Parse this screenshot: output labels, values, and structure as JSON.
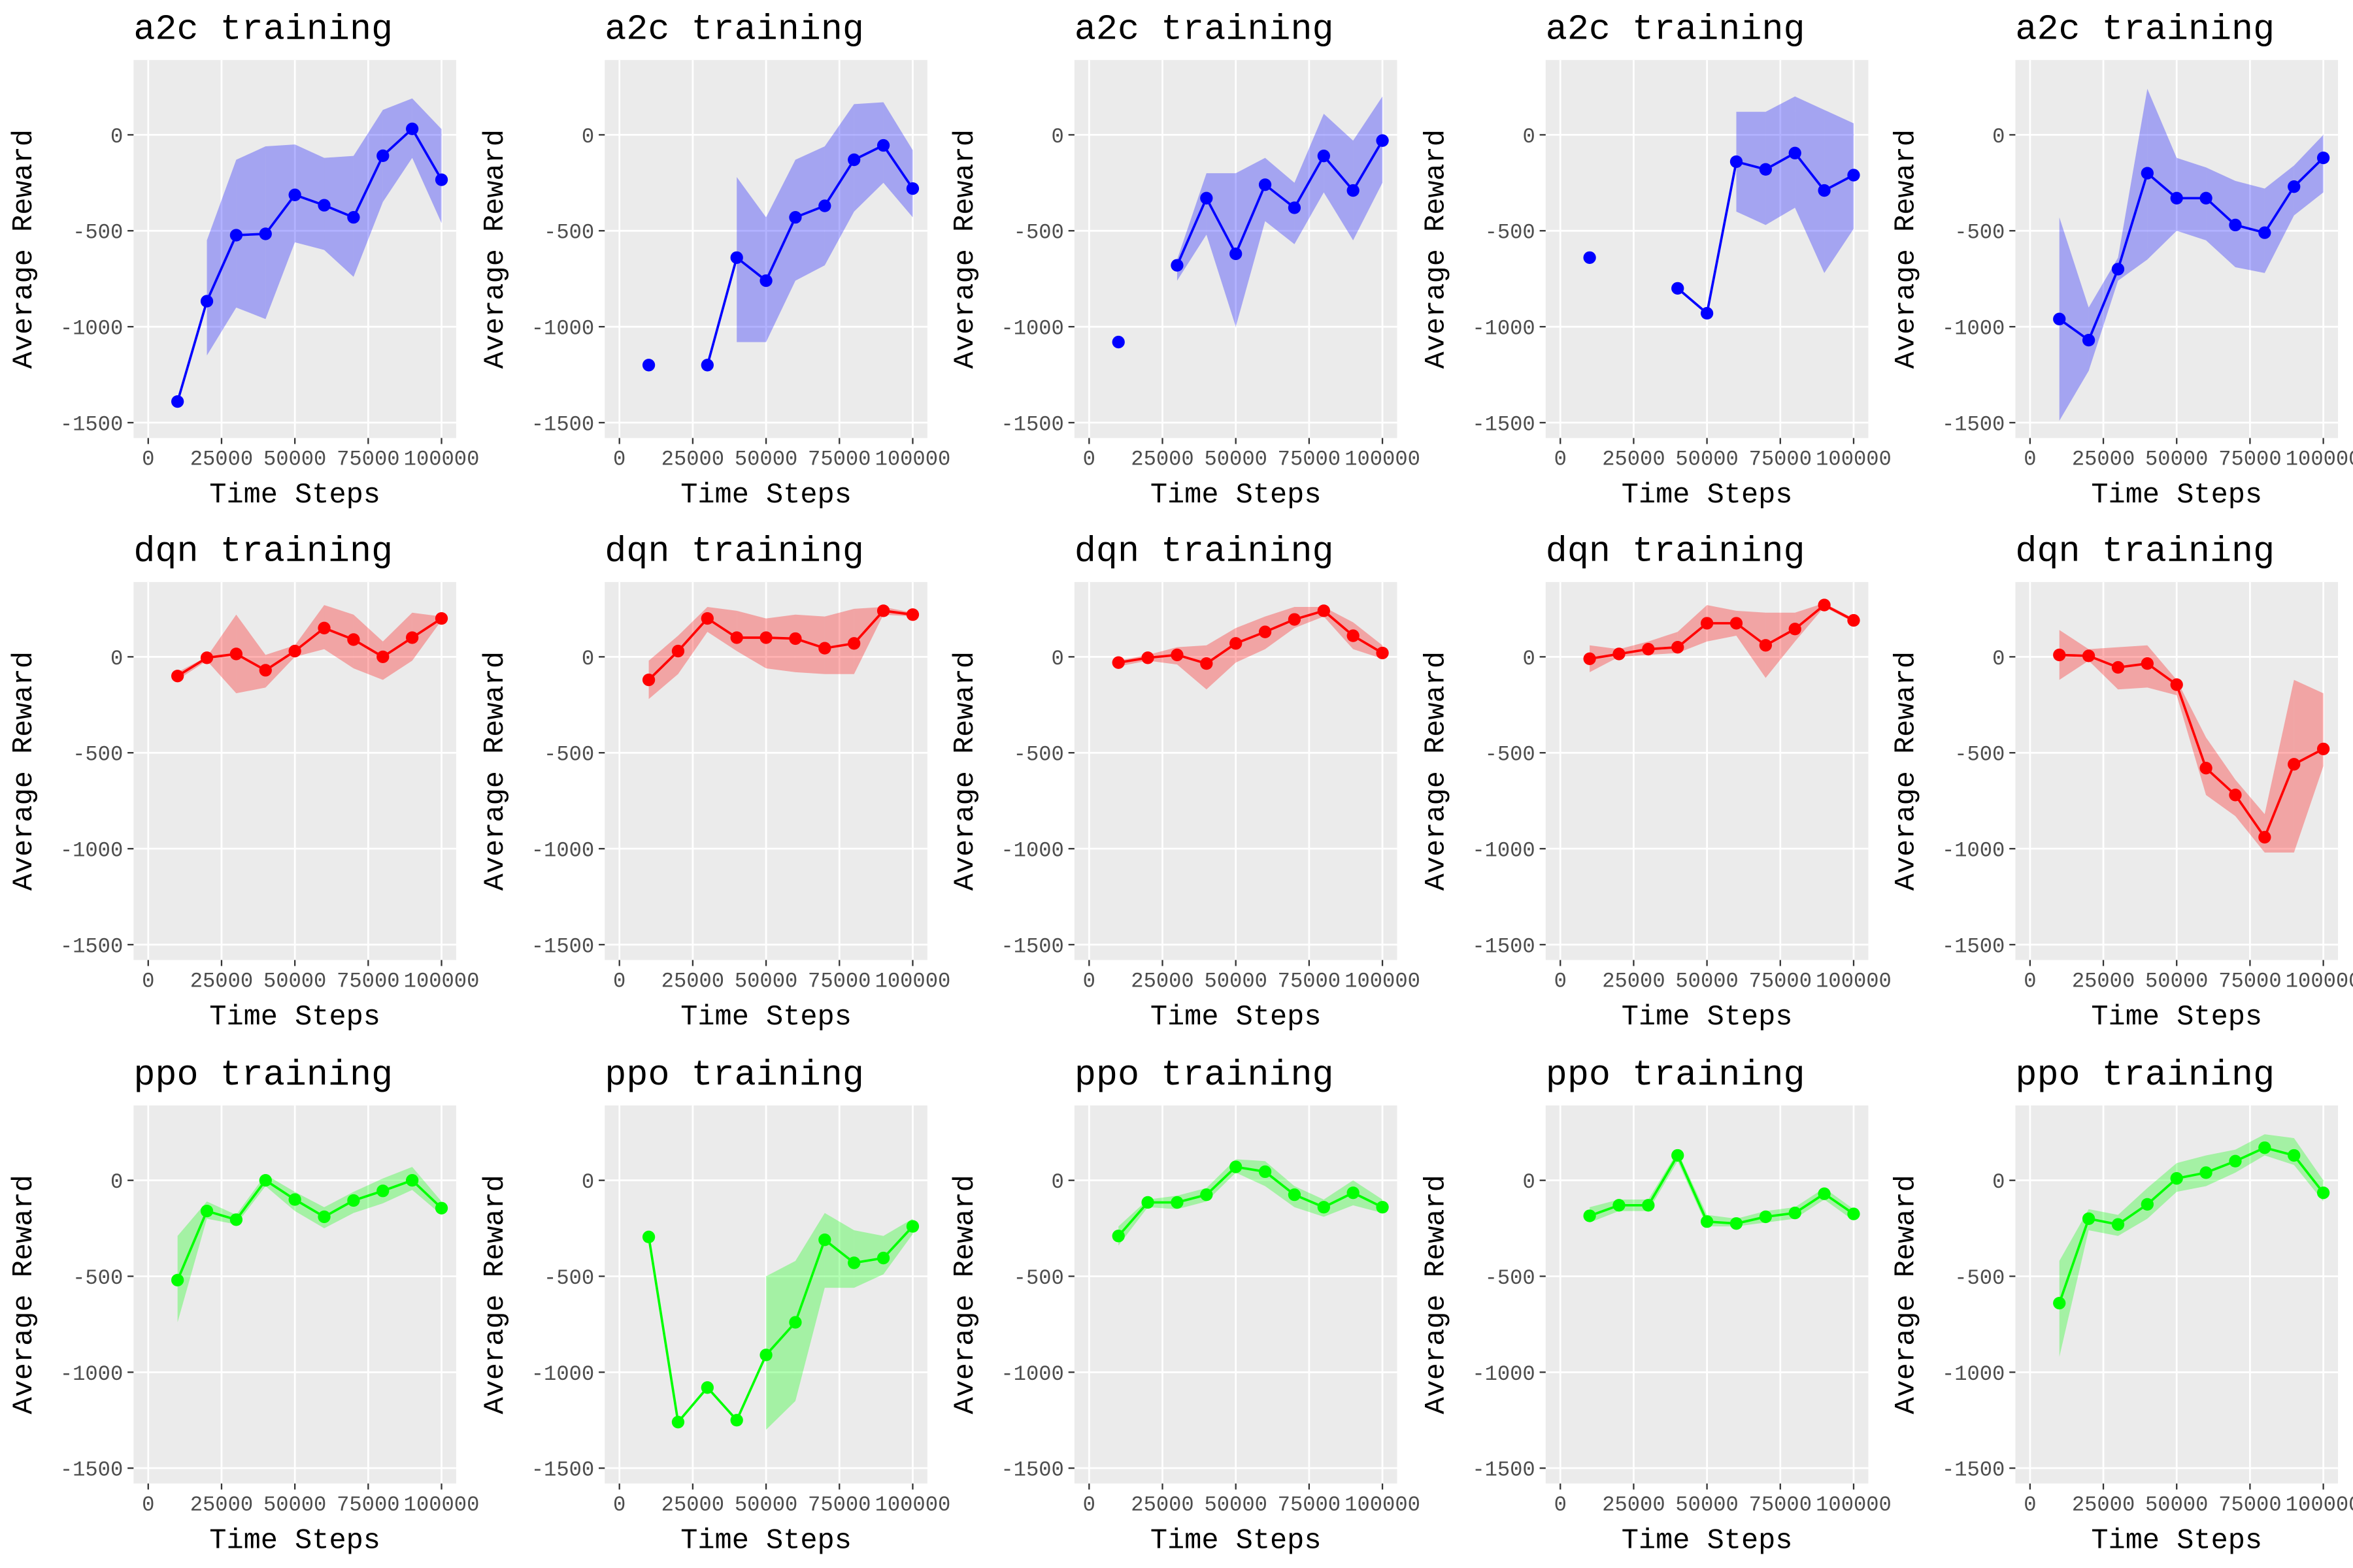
{
  "chart_data": [
    {
      "type": "line",
      "title": "a2c training",
      "xlabel": "Time Steps",
      "ylabel": "Average Reward",
      "color": "#0000ff",
      "grid": true,
      "xlim": [
        -5000,
        105000
      ],
      "ylim": [
        -1580,
        390
      ],
      "xticks": [
        0,
        25000,
        50000,
        75000,
        100000
      ],
      "yticks": [
        -1500,
        -1000,
        -500,
        0
      ],
      "x": [
        10000,
        20000,
        30000,
        40000,
        50000,
        60000,
        70000,
        80000,
        90000,
        100000
      ],
      "values": [
        -1390,
        -867,
        -523,
        -516,
        -313,
        -367,
        -430,
        -109,
        31,
        -234
      ],
      "upper": [
        null,
        -550,
        -130,
        -60,
        -50,
        -120,
        -110,
        130,
        190,
        30
      ],
      "lower": [
        null,
        -1150,
        -900,
        -960,
        -560,
        -600,
        -740,
        -350,
        -120,
        -460
      ]
    },
    {
      "type": "line",
      "title": "a2c training",
      "xlabel": "Time Steps",
      "ylabel": "Average Reward",
      "color": "#0000ff",
      "grid": true,
      "xlim": [
        -5000,
        105000
      ],
      "ylim": [
        -1580,
        390
      ],
      "xticks": [
        0,
        25000,
        50000,
        75000,
        100000
      ],
      "yticks": [
        -1500,
        -1000,
        -500,
        0
      ],
      "x": [
        10000,
        20000,
        30000,
        40000,
        50000,
        60000,
        70000,
        80000,
        90000,
        100000
      ],
      "values": [
        -1200,
        null,
        -1200,
        -640,
        -760,
        -430,
        -370,
        -130,
        -55,
        -280
      ],
      "upper": [
        null,
        null,
        null,
        -220,
        -430,
        -130,
        -60,
        160,
        170,
        -80
      ],
      "lower": [
        null,
        null,
        null,
        -1080,
        -1080,
        -760,
        -680,
        -400,
        -250,
        -430
      ]
    },
    {
      "type": "line",
      "title": "a2c training",
      "xlabel": "Time Steps",
      "ylabel": "Average Reward",
      "color": "#0000ff",
      "grid": true,
      "xlim": [
        -5000,
        105000
      ],
      "ylim": [
        -1580,
        390
      ],
      "xticks": [
        0,
        25000,
        50000,
        75000,
        100000
      ],
      "yticks": [
        -1500,
        -1000,
        -500,
        0
      ],
      "x": [
        10000,
        20000,
        30000,
        40000,
        50000,
        60000,
        70000,
        80000,
        90000,
        100000
      ],
      "values": [
        -1080,
        null,
        -680,
        -330,
        -620,
        -260,
        -380,
        -110,
        -290,
        -30
      ],
      "upper": [
        null,
        null,
        -650,
        -200,
        -200,
        -120,
        -250,
        110,
        -30,
        200
      ],
      "lower": [
        null,
        null,
        -760,
        -520,
        -1000,
        -450,
        -570,
        -300,
        -550,
        -250
      ]
    },
    {
      "type": "line",
      "title": "a2c training",
      "xlabel": "Time Steps",
      "ylabel": "Average Reward",
      "color": "#0000ff",
      "grid": true,
      "xlim": [
        -5000,
        105000
      ],
      "ylim": [
        -1580,
        390
      ],
      "xticks": [
        0,
        25000,
        50000,
        75000,
        100000
      ],
      "yticks": [
        -1500,
        -1000,
        -500,
        0
      ],
      "x": [
        10000,
        20000,
        30000,
        40000,
        50000,
        60000,
        70000,
        80000,
        90000,
        100000
      ],
      "values": [
        -640,
        null,
        null,
        -800,
        -930,
        -140,
        -180,
        -95,
        -290,
        -210
      ],
      "upper": [
        null,
        null,
        null,
        null,
        null,
        120,
        120,
        200,
        130,
        60
      ],
      "lower": [
        null,
        null,
        null,
        null,
        null,
        -400,
        -470,
        -380,
        -720,
        -490
      ]
    },
    {
      "type": "line",
      "title": "a2c training",
      "xlabel": "Time Steps",
      "ylabel": "Average Reward",
      "color": "#0000ff",
      "grid": true,
      "xlim": [
        -5000,
        105000
      ],
      "ylim": [
        -1580,
        390
      ],
      "xticks": [
        0,
        25000,
        50000,
        75000,
        100000
      ],
      "yticks": [
        -1500,
        -1000,
        -500,
        0
      ],
      "x": [
        10000,
        20000,
        30000,
        40000,
        50000,
        60000,
        70000,
        80000,
        90000,
        100000
      ],
      "values": [
        -960,
        -1070,
        -700,
        -200,
        -330,
        -330,
        -470,
        -510,
        -270,
        -120
      ],
      "upper": [
        -430,
        -900,
        -640,
        240,
        -120,
        -170,
        -240,
        -280,
        -160,
        0
      ],
      "lower": [
        -1490,
        -1230,
        -760,
        -650,
        -500,
        -550,
        -690,
        -720,
        -420,
        -300
      ]
    },
    {
      "type": "line",
      "title": "dqn training",
      "xlabel": "Time Steps",
      "ylabel": "Average Reward",
      "color": "#ff0000",
      "grid": true,
      "xlim": [
        -5000,
        105000
      ],
      "ylim": [
        -1580,
        390
      ],
      "xticks": [
        0,
        25000,
        50000,
        75000,
        100000
      ],
      "yticks": [
        -1500,
        -1000,
        -500,
        0
      ],
      "x": [
        10000,
        20000,
        30000,
        40000,
        50000,
        60000,
        70000,
        80000,
        90000,
        100000
      ],
      "values": [
        -100,
        -5,
        15,
        -70,
        30,
        150,
        90,
        0,
        100,
        200
      ],
      "upper": [
        -80,
        0,
        220,
        10,
        60,
        270,
        220,
        80,
        230,
        210
      ],
      "lower": [
        -120,
        -20,
        -190,
        -160,
        0,
        40,
        -60,
        -120,
        -20,
        190
      ]
    },
    {
      "type": "line",
      "title": "dqn training",
      "xlabel": "Time Steps",
      "ylabel": "Average Reward",
      "color": "#ff0000",
      "grid": true,
      "xlim": [
        -5000,
        105000
      ],
      "ylim": [
        -1580,
        390
      ],
      "xticks": [
        0,
        25000,
        50000,
        75000,
        100000
      ],
      "yticks": [
        -1500,
        -1000,
        -500,
        0
      ],
      "x": [
        10000,
        20000,
        30000,
        40000,
        50000,
        60000,
        70000,
        80000,
        90000,
        100000
      ],
      "values": [
        -120,
        30,
        200,
        100,
        100,
        95,
        45,
        70,
        240,
        220
      ],
      "upper": [
        -20,
        110,
        260,
        240,
        200,
        220,
        210,
        250,
        260,
        230
      ],
      "lower": [
        -220,
        -90,
        130,
        30,
        -60,
        -80,
        -90,
        -90,
        220,
        210
      ]
    },
    {
      "type": "line",
      "title": "dqn training",
      "xlabel": "Time Steps",
      "ylabel": "Average Reward",
      "color": "#ff0000",
      "grid": true,
      "xlim": [
        -5000,
        105000
      ],
      "ylim": [
        -1580,
        390
      ],
      "xticks": [
        0,
        25000,
        50000,
        75000,
        100000
      ],
      "yticks": [
        -1500,
        -1000,
        -500,
        0
      ],
      "x": [
        10000,
        20000,
        30000,
        40000,
        50000,
        60000,
        70000,
        80000,
        90000,
        100000
      ],
      "values": [
        -30,
        -5,
        10,
        -35,
        70,
        130,
        195,
        240,
        110,
        20
      ],
      "upper": [
        -20,
        10,
        50,
        60,
        150,
        210,
        260,
        260,
        180,
        60
      ],
      "lower": [
        -50,
        -20,
        -40,
        -170,
        -30,
        40,
        150,
        210,
        40,
        -10
      ]
    },
    {
      "type": "line",
      "title": "dqn training",
      "xlabel": "Time Steps",
      "ylabel": "Average Reward",
      "color": "#ff0000",
      "grid": true,
      "xlim": [
        -5000,
        105000
      ],
      "ylim": [
        -1580,
        390
      ],
      "xticks": [
        0,
        25000,
        50000,
        75000,
        100000
      ],
      "yticks": [
        -1500,
        -1000,
        -500,
        0
      ],
      "x": [
        10000,
        20000,
        30000,
        40000,
        50000,
        60000,
        70000,
        80000,
        90000,
        100000
      ],
      "values": [
        -10,
        15,
        40,
        50,
        175,
        175,
        60,
        145,
        270,
        190
      ],
      "upper": [
        60,
        40,
        80,
        130,
        270,
        240,
        230,
        230,
        280,
        200
      ],
      "lower": [
        -80,
        0,
        10,
        20,
        80,
        110,
        -110,
        80,
        260,
        180
      ]
    },
    {
      "type": "line",
      "title": "dqn training",
      "xlabel": "Time Steps",
      "ylabel": "Average Reward",
      "color": "#ff0000",
      "grid": true,
      "xlim": [
        -5000,
        105000
      ],
      "ylim": [
        -1580,
        390
      ],
      "xticks": [
        0,
        25000,
        50000,
        75000,
        100000
      ],
      "yticks": [
        -1500,
        -1000,
        -500,
        0
      ],
      "x": [
        10000,
        20000,
        30000,
        40000,
        50000,
        60000,
        70000,
        80000,
        90000,
        100000
      ],
      "values": [
        10,
        5,
        -55,
        -35,
        -145,
        -580,
        -720,
        -940,
        -560,
        -480
      ],
      "upper": [
        140,
        40,
        50,
        60,
        -120,
        -420,
        -640,
        -820,
        -120,
        -190
      ],
      "lower": [
        -120,
        -20,
        -170,
        -160,
        -200,
        -720,
        -830,
        -1020,
        -1020,
        -570
      ]
    },
    {
      "type": "line",
      "title": "ppo training",
      "xlabel": "Time Steps",
      "ylabel": "Average Reward",
      "color": "#00ff00",
      "grid": true,
      "xlim": [
        -5000,
        105000
      ],
      "ylim": [
        -1580,
        390
      ],
      "xticks": [
        0,
        25000,
        50000,
        75000,
        100000
      ],
      "yticks": [
        -1500,
        -1000,
        -500,
        0
      ],
      "x": [
        10000,
        20000,
        30000,
        40000,
        50000,
        60000,
        70000,
        80000,
        90000,
        100000
      ],
      "values": [
        -520,
        -160,
        -205,
        0,
        -100,
        -190,
        -105,
        -55,
        0,
        -145
      ],
      "upper": [
        -290,
        -110,
        -180,
        30,
        -60,
        -140,
        -60,
        10,
        70,
        -110
      ],
      "lower": [
        -740,
        -200,
        -230,
        -30,
        -160,
        -250,
        -170,
        -120,
        -50,
        -180
      ]
    },
    {
      "type": "line",
      "title": "ppo training",
      "xlabel": "Time Steps",
      "ylabel": "Average Reward",
      "color": "#00ff00",
      "grid": true,
      "xlim": [
        -5000,
        105000
      ],
      "ylim": [
        -1580,
        390
      ],
      "xticks": [
        0,
        25000,
        50000,
        75000,
        100000
      ],
      "yticks": [
        -1500,
        -1000,
        -500,
        0
      ],
      "x": [
        10000,
        20000,
        30000,
        40000,
        50000,
        60000,
        70000,
        80000,
        90000,
        100000
      ],
      "values": [
        -295,
        -1260,
        -1080,
        -1250,
        -910,
        -740,
        -310,
        -430,
        -405,
        -240
      ],
      "upper": [
        null,
        null,
        null,
        null,
        -500,
        -420,
        -170,
        -260,
        -290,
        -200
      ],
      "lower": [
        null,
        null,
        null,
        null,
        -1300,
        -1150,
        -560,
        -560,
        -490,
        -280
      ]
    },
    {
      "type": "line",
      "title": "ppo training",
      "xlabel": "Time Steps",
      "ylabel": "Average Reward",
      "color": "#00ff00",
      "grid": true,
      "xlim": [
        -5000,
        105000
      ],
      "ylim": [
        -1580,
        390
      ],
      "xticks": [
        0,
        25000,
        50000,
        75000,
        100000
      ],
      "yticks": [
        -1500,
        -1000,
        -500,
        0
      ],
      "x": [
        10000,
        20000,
        30000,
        40000,
        50000,
        60000,
        70000,
        80000,
        90000,
        100000
      ],
      "values": [
        -290,
        -115,
        -115,
        -75,
        70,
        45,
        -75,
        -140,
        -65,
        -140
      ],
      "upper": [
        -240,
        -100,
        -80,
        -40,
        110,
        100,
        -30,
        -100,
        0,
        -100
      ],
      "lower": [
        -340,
        -140,
        -150,
        -110,
        40,
        -30,
        -140,
        -190,
        -130,
        -170
      ]
    },
    {
      "type": "line",
      "title": "ppo training",
      "xlabel": "Time Steps",
      "ylabel": "Average Reward",
      "color": "#00ff00",
      "grid": true,
      "xlim": [
        -5000,
        105000
      ],
      "ylim": [
        -1580,
        390
      ],
      "xticks": [
        0,
        25000,
        50000,
        75000,
        100000
      ],
      "yticks": [
        -1500,
        -1000,
        -500,
        0
      ],
      "x": [
        10000,
        20000,
        30000,
        40000,
        50000,
        60000,
        70000,
        80000,
        90000,
        100000
      ],
      "values": [
        -185,
        -130,
        -130,
        130,
        -215,
        -225,
        -190,
        -170,
        -70,
        -175
      ],
      "upper": [
        -140,
        -100,
        -100,
        150,
        -180,
        -200,
        -160,
        -140,
        -40,
        -150
      ],
      "lower": [
        -220,
        -160,
        -160,
        100,
        -240,
        -240,
        -220,
        -200,
        -100,
        -210
      ]
    },
    {
      "type": "line",
      "title": "ppo training",
      "xlabel": "Time Steps",
      "ylabel": "Average Reward",
      "color": "#00ff00",
      "grid": true,
      "xlim": [
        -5000,
        105000
      ],
      "ylim": [
        -1580,
        390
      ],
      "xticks": [
        0,
        25000,
        50000,
        75000,
        100000
      ],
      "yticks": [
        -1500,
        -1000,
        -500,
        0
      ],
      "x": [
        10000,
        20000,
        30000,
        40000,
        50000,
        60000,
        70000,
        80000,
        90000,
        100000
      ],
      "values": [
        -640,
        -200,
        -230,
        -125,
        10,
        40,
        100,
        170,
        130,
        -65
      ],
      "upper": [
        -420,
        -150,
        -180,
        -40,
        90,
        130,
        160,
        240,
        220,
        0
      ],
      "lower": [
        -920,
        -260,
        -290,
        -200,
        -60,
        -30,
        40,
        130,
        80,
        -110
      ]
    }
  ]
}
